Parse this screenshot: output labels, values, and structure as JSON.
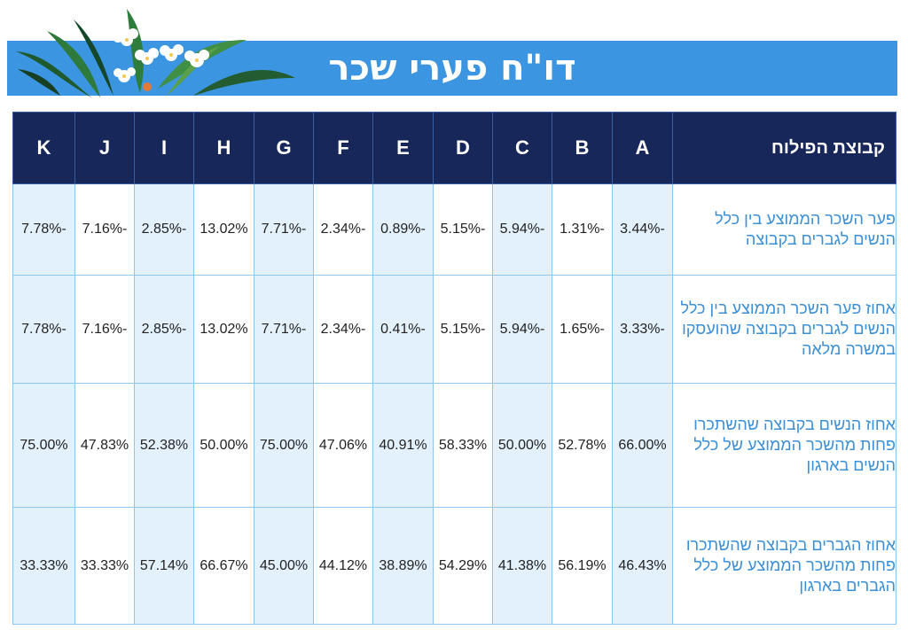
{
  "header": {
    "title": "דו\"ח פערי שכר"
  },
  "table": {
    "corner_label": "קבוצת הפילוח",
    "columns": [
      "A",
      "B",
      "C",
      "D",
      "E",
      "F",
      "G",
      "H",
      "I",
      "J",
      "K"
    ],
    "rows": [
      {
        "label": "פער השכר הממוצע בין כלל הנשים לגברים בקבוצה",
        "values": [
          "-3.44%",
          "-1.31%",
          "-5.94%",
          "-5.15%",
          "-0.89%",
          "-2.34%",
          "-7.71%",
          "13.02%",
          "-2.85%",
          "-7.16%",
          "-7.78%"
        ]
      },
      {
        "label": "אחוז פער השכר הממוצע בין כלל הנשים לגברים  בקבוצה שהועסקו במשרה מלאה",
        "values": [
          "-3.33%",
          "-1.65%",
          "-5.94%",
          "-5.15%",
          "-0.41%",
          "-2.34%",
          "-7.71%",
          "13.02%",
          "-2.85%",
          "-7.16%",
          "-7.78%"
        ]
      },
      {
        "label": "אחוז הנשים בקבוצה שהשתכרו פחות מהשכר הממוצע של כלל הנשים בארגון",
        "values": [
          "66.00%",
          "52.78%",
          "50.00%",
          "58.33%",
          "40.91%",
          "47.06%",
          "75.00%",
          "50.00%",
          "52.38%",
          "47.83%",
          "75.00%"
        ]
      },
      {
        "label": "אחוז הגברים בקבוצה שהשתכרו פחות מהשכר הממוצע של כלל הגברים בארגון",
        "values": [
          "46.43%",
          "56.19%",
          "41.38%",
          "54.29%",
          "38.89%",
          "44.12%",
          "45.00%",
          "66.67%",
          "57.14%",
          "33.33%",
          "33.33%"
        ]
      }
    ]
  }
}
